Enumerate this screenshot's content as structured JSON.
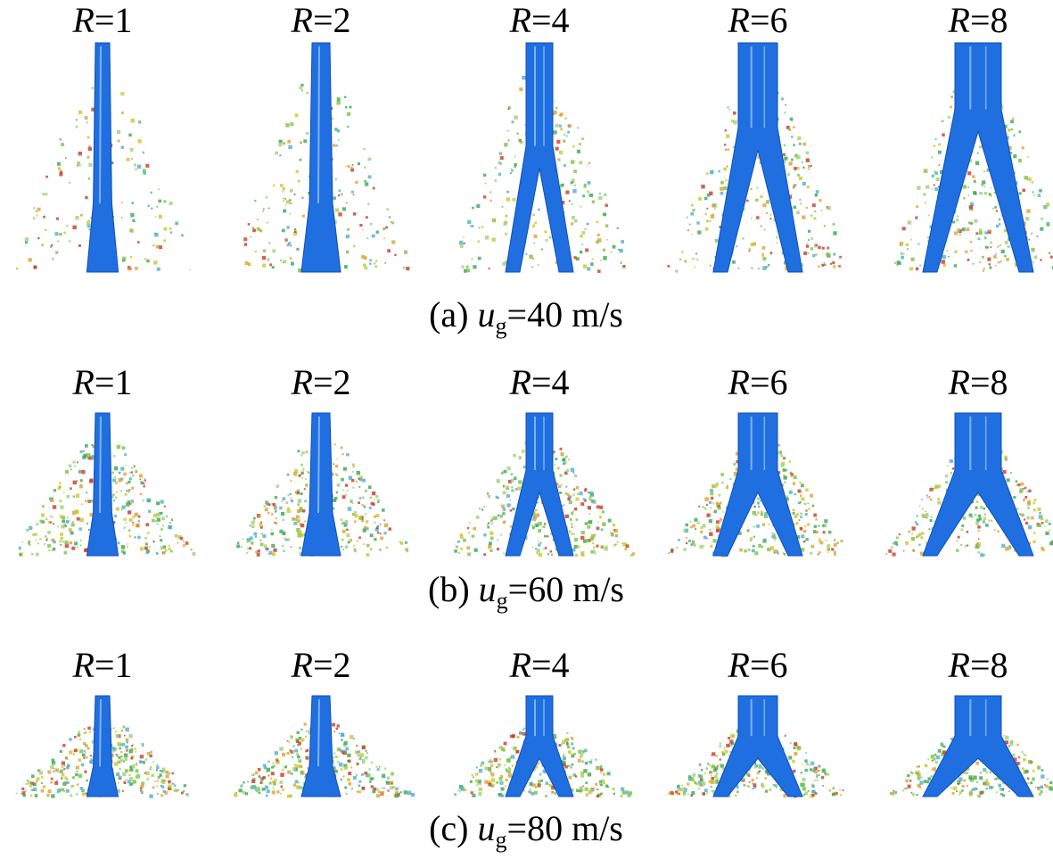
{
  "figure": {
    "rows": [
      {
        "labels": [
          {
            "symbol": "R",
            "eq": "=1"
          },
          {
            "symbol": "R",
            "eq": "=2"
          },
          {
            "symbol": "R",
            "eq": "=4"
          },
          {
            "symbol": "R",
            "eq": "=6"
          },
          {
            "symbol": "R",
            "eq": "=8"
          }
        ],
        "caption": {
          "prefix": "(a)",
          "symbol": "u",
          "subscript": "g",
          "rest": "=40 m/s"
        }
      },
      {
        "labels": [
          {
            "symbol": "R",
            "eq": "=1"
          },
          {
            "symbol": "R",
            "eq": "=2"
          },
          {
            "symbol": "R",
            "eq": "=4"
          },
          {
            "symbol": "R",
            "eq": "=6"
          },
          {
            "symbol": "R",
            "eq": "=8"
          }
        ],
        "caption": {
          "prefix": "(b)",
          "symbol": "u",
          "subscript": "g",
          "rest": "=60 m/s"
        }
      },
      {
        "labels": [
          {
            "symbol": "R",
            "eq": "=1"
          },
          {
            "symbol": "R",
            "eq": "=2"
          },
          {
            "symbol": "R",
            "eq": "=4"
          },
          {
            "symbol": "R",
            "eq": "=6"
          },
          {
            "symbol": "R",
            "eq": "=8"
          }
        ],
        "caption": {
          "prefix": "(c)",
          "symbol": "u",
          "subscript": "g",
          "rest": "=80 m/s"
        }
      }
    ]
  }
}
